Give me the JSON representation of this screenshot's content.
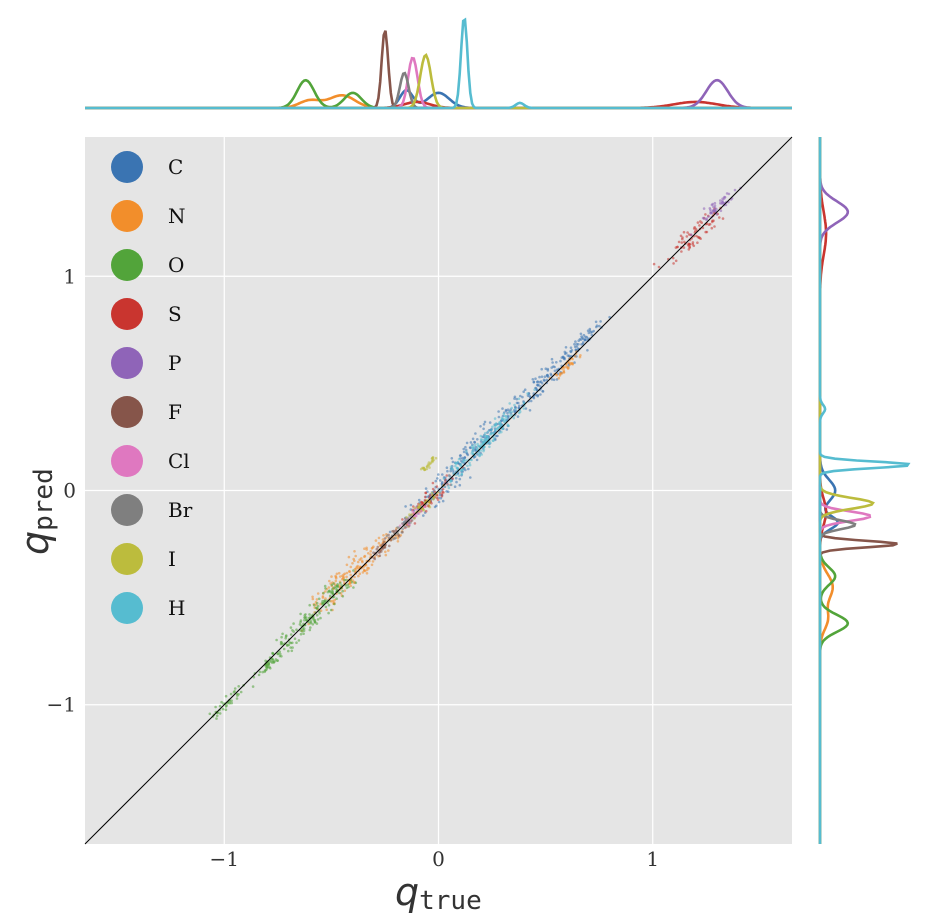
{
  "chart_data": {
    "type": "scatter",
    "xlabel_main": "q",
    "xlabel_sub": "true",
    "ylabel_main": "q",
    "ylabel_sub": "pred",
    "xlim": [
      -1.65,
      1.65
    ],
    "ylim": [
      -1.65,
      1.65
    ],
    "xticks": [
      -1,
      0,
      1
    ],
    "yticks": [
      -1,
      0,
      1
    ],
    "xtick_labels": [
      "−1",
      "0",
      "1"
    ],
    "ytick_labels": [
      "−1",
      "0",
      "1"
    ],
    "grid": true,
    "legend_position": "top-left",
    "reference_line": "y = x",
    "series": [
      {
        "name": "C",
        "color": "#3a74b2",
        "clusters": [
          [
            0.0,
            0.0,
            0.07
          ],
          [
            0.18,
            0.21,
            0.06
          ],
          [
            0.35,
            0.37,
            0.06
          ],
          [
            0.52,
            0.54,
            0.06
          ],
          [
            0.68,
            0.7,
            0.04
          ]
        ],
        "marginal_peaks": [
          [
            0.0,
            0.05,
            0.3
          ],
          [
            -0.15,
            0.03,
            0.35
          ]
        ]
      },
      {
        "name": "N",
        "color": "#f28e2b",
        "clusters": [
          [
            -0.45,
            -0.42,
            0.08
          ],
          [
            -0.3,
            -0.3,
            0.06
          ],
          [
            0.6,
            0.58,
            0.03
          ]
        ],
        "marginal_peaks": [
          [
            -0.45,
            0.06,
            0.25
          ],
          [
            -0.6,
            0.05,
            0.15
          ]
        ]
      },
      {
        "name": "O",
        "color": "#52a43a",
        "clusters": [
          [
            -0.62,
            -0.62,
            0.07
          ],
          [
            -0.5,
            -0.49,
            0.05
          ],
          [
            -0.78,
            -0.8,
            0.04
          ],
          [
            -0.98,
            -0.98,
            0.03
          ]
        ],
        "marginal_peaks": [
          [
            -0.62,
            0.04,
            0.55
          ],
          [
            -0.4,
            0.04,
            0.3
          ]
        ]
      },
      {
        "name": "S",
        "color": "#c9352f",
        "clusters": [
          [
            1.2,
            1.2,
            0.06
          ],
          [
            -0.05,
            -0.05,
            0.05
          ]
        ],
        "marginal_peaks": [
          [
            1.2,
            0.1,
            0.12
          ],
          [
            -0.1,
            0.06,
            0.12
          ]
        ]
      },
      {
        "name": "P",
        "color": "#8f64b8",
        "clusters": [
          [
            1.3,
            1.32,
            0.04
          ]
        ],
        "marginal_peaks": [
          [
            1.3,
            0.05,
            0.55
          ]
        ]
      },
      {
        "name": "F",
        "color": "#86554a",
        "clusters": [
          [
            -0.25,
            -0.25,
            0.03
          ]
        ],
        "marginal_peaks": [
          [
            -0.25,
            0.015,
            1.55
          ]
        ]
      },
      {
        "name": "Cl",
        "color": "#df78c0",
        "clusters": [
          [
            -0.12,
            -0.12,
            0.03
          ]
        ],
        "marginal_peaks": [
          [
            -0.12,
            0.022,
            1.0
          ]
        ]
      },
      {
        "name": "Br",
        "color": "#7f7f7f",
        "clusters": [
          [
            -0.16,
            -0.16,
            0.03
          ]
        ],
        "marginal_peaks": [
          [
            -0.16,
            0.02,
            0.7
          ]
        ]
      },
      {
        "name": "I",
        "color": "#bcbc3d",
        "clusters": [
          [
            -0.07,
            -0.07,
            0.03
          ],
          [
            -0.05,
            0.12,
            0.02
          ]
        ],
        "marginal_peaks": [
          [
            -0.06,
            0.025,
            1.05
          ]
        ]
      },
      {
        "name": "H",
        "color": "#56bcd0",
        "clusters": [
          [
            0.12,
            0.13,
            0.05
          ],
          [
            0.3,
            0.32,
            0.05
          ],
          [
            0.22,
            0.23,
            0.04
          ]
        ],
        "marginal_peaks": [
          [
            0.12,
            0.015,
            1.8
          ],
          [
            0.38,
            0.02,
            0.1
          ]
        ]
      }
    ]
  }
}
